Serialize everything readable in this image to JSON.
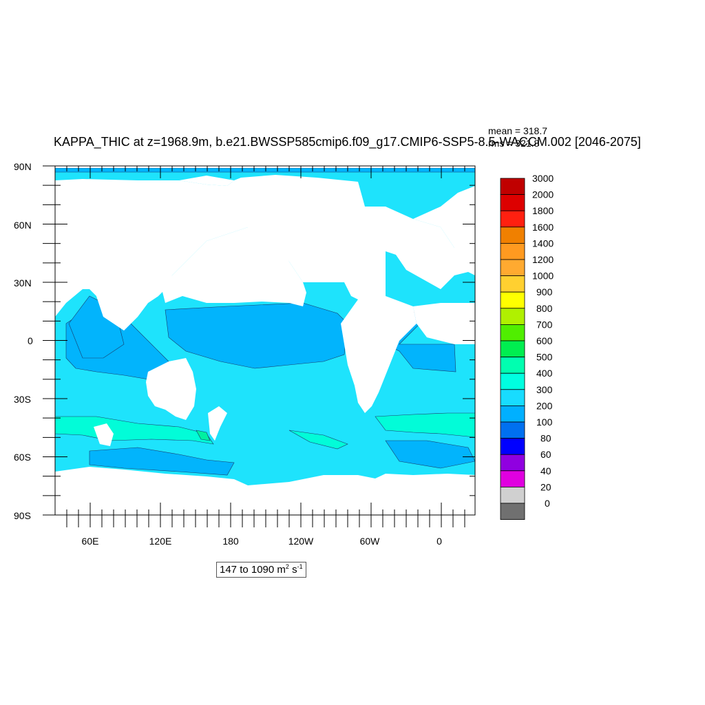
{
  "plot": {
    "title": "KAPPA_THIC at z=1968.9m, b.e21.BWSSP585cmip6.f09_g17.CMIP6-SSP5-8.5-WACCM.002 [2046-2075]",
    "mean_text": "mean = 318.7",
    "rms_text": "rms = 321.8",
    "range_prefix": "147 to 1090 m",
    "range_unit_mid": " s",
    "exp_m": "2",
    "exp_s": "-1"
  },
  "axes": {
    "lat_labels": [
      "90N",
      "60N",
      "30N",
      "0",
      "30S",
      "60S",
      "90S"
    ],
    "lon_labels": [
      "60E",
      "120E",
      "180",
      "120W",
      "60W",
      "0"
    ]
  },
  "colorbar": {
    "levels": [
      "3000",
      "2000",
      "1800",
      "1600",
      "1400",
      "1200",
      "1000",
      "900",
      "800",
      "700",
      "600",
      "500",
      "400",
      "300",
      "200",
      "100",
      "80",
      "60",
      "40",
      "20",
      "0"
    ],
    "colors": [
      "#c00000",
      "#dd0000",
      "#ff2010",
      "#f08000",
      "#ff9a20",
      "#ffaa30",
      "#ffd030",
      "#ffff00",
      "#b0f000",
      "#50ee00",
      "#00ee50",
      "#00ffb0",
      "#00ffe0",
      "#18dcff",
      "#00b0ff",
      "#0070f0",
      "#0000ff",
      "#9000e0",
      "#e000e0",
      "#d0d0d0",
      "#707070"
    ]
  },
  "ocean_colors": {
    "c300_400": "#1ee3fc",
    "c200_300": "#02b4fc",
    "c400_500": "#02fcd8",
    "c500_600": "#00f0a0"
  }
}
